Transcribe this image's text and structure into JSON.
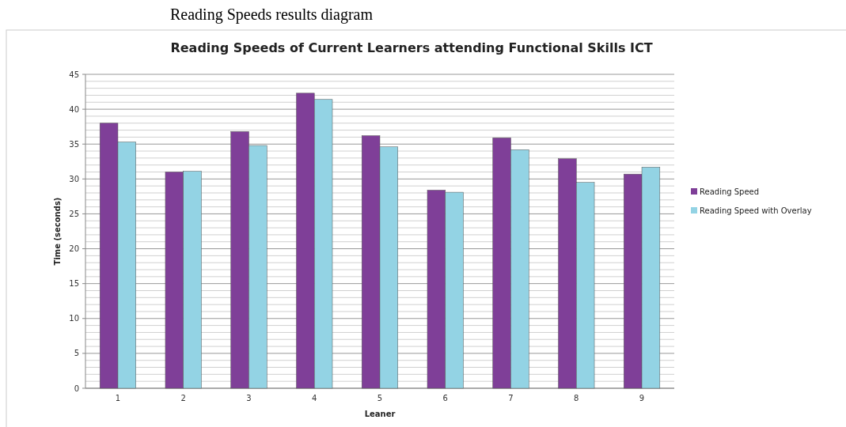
{
  "chart_data": {
    "type": "bar",
    "title": "Reading Speeds of Current Learners attending Functional Skills ICT",
    "annotations": [
      "Reading Speeds results diagram"
    ],
    "xlabel": "Leaner",
    "ylabel": "Time (seconds)",
    "categories": [
      "1",
      "2",
      "3",
      "4",
      "5",
      "6",
      "7",
      "8",
      "9"
    ],
    "series": [
      {
        "name": "Reading Speed",
        "color": "#7f3f98",
        "values": [
          38,
          31,
          36.8,
          42.3,
          36.2,
          28.4,
          35.9,
          32.9,
          30.7
        ]
      },
      {
        "name": "Reading Speed with Overlay",
        "color": "#93d3e4",
        "values": [
          35.3,
          31.1,
          34.8,
          41.4,
          34.6,
          28.1,
          34.2,
          29.5,
          31.7
        ]
      }
    ],
    "ylim": [
      0,
      45
    ],
    "yticks": [
      0,
      5,
      10,
      15,
      20,
      25,
      30,
      35,
      40,
      45
    ],
    "grid": "y",
    "legend": "right"
  }
}
